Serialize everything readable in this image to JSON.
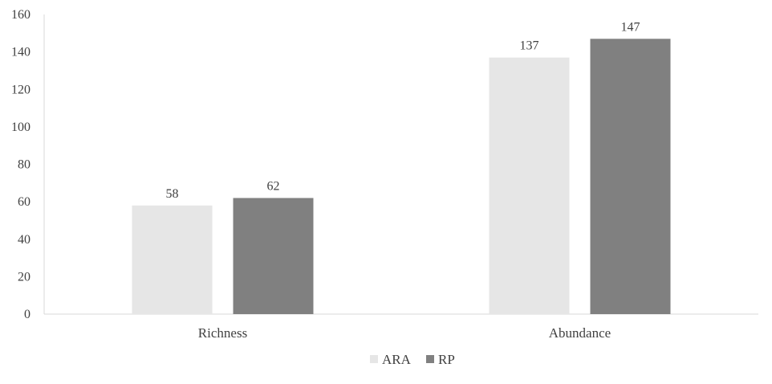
{
  "chart_data": {
    "type": "bar",
    "categories": [
      "Richness",
      "Abundance"
    ],
    "series": [
      {
        "name": "ARA",
        "values": [
          58,
          137
        ],
        "color": "#e6e6e6"
      },
      {
        "name": "RP",
        "values": [
          62,
          147
        ],
        "color": "#808080"
      }
    ],
    "ylim": [
      0,
      160
    ],
    "yticks": [
      0,
      20,
      40,
      60,
      80,
      100,
      120,
      140,
      160
    ],
    "title": "",
    "xlabel": "",
    "ylabel": "",
    "grid": false,
    "legend_position": "bottom-center",
    "data_labels": true
  }
}
